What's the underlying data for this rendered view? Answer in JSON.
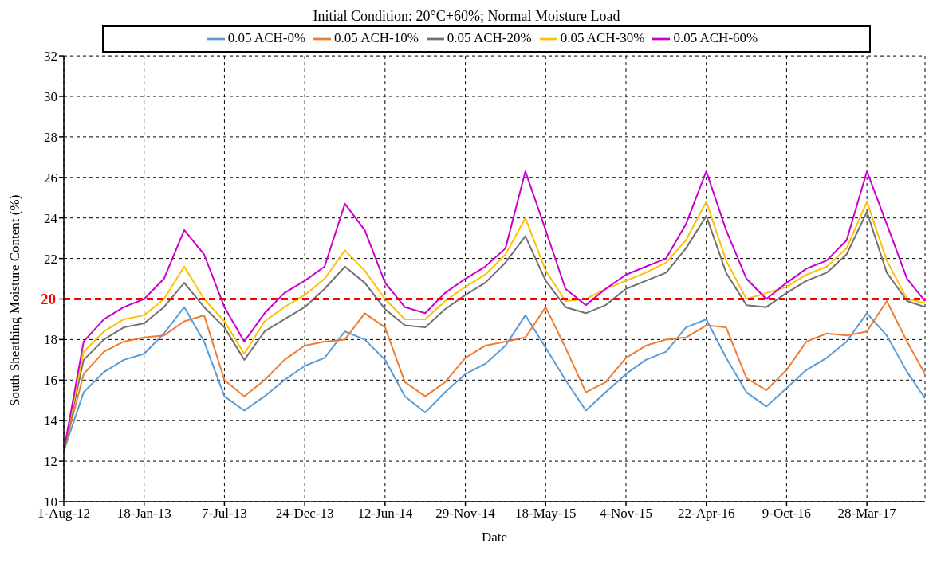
{
  "chart_data": {
    "type": "line",
    "title": "Initial Condition: 20°C+60%; Normal Moisture Load",
    "xlabel": "Date",
    "ylabel": "South Sheathing Moisture Content (%)",
    "x": [
      "2012-08-01",
      "2012-09-12",
      "2012-10-25",
      "2012-12-06",
      "2013-01-18",
      "2013-03-01",
      "2013-04-13",
      "2013-05-25",
      "2013-07-07",
      "2013-08-18",
      "2013-09-30",
      "2013-11-11",
      "2013-12-24",
      "2014-02-04",
      "2014-03-19",
      "2014-04-30",
      "2014-06-12",
      "2014-07-24",
      "2014-09-05",
      "2014-10-17",
      "2014-11-29",
      "2015-01-10",
      "2015-02-22",
      "2015-04-05",
      "2015-05-18",
      "2015-06-29",
      "2015-08-11",
      "2015-09-22",
      "2015-11-04",
      "2015-12-16",
      "2016-01-28",
      "2016-03-10",
      "2016-04-22",
      "2016-06-03",
      "2016-07-16",
      "2016-08-27",
      "2016-10-09",
      "2016-11-20",
      "2017-01-02",
      "2017-02-13",
      "2017-03-28",
      "2017-05-09",
      "2017-06-21",
      "2017-07-29"
    ],
    "series": [
      {
        "name": "0.05 ACH-0%",
        "color": "#5b9bd5",
        "values": [
          12.5,
          15.4,
          16.4,
          17.0,
          17.3,
          18.3,
          19.6,
          17.9,
          15.2,
          14.5,
          15.2,
          16.0,
          16.7,
          17.1,
          18.4,
          18.0,
          17.0,
          15.2,
          14.4,
          15.4,
          16.3,
          16.8,
          17.7,
          19.2,
          17.6,
          16.0,
          14.5,
          15.4,
          16.3,
          17.0,
          17.4,
          18.6,
          19.0,
          17.1,
          15.4,
          14.7,
          15.6,
          16.5,
          17.1,
          17.9,
          19.3,
          18.2,
          16.4,
          15.1
        ]
      },
      {
        "name": "0.05 ACH-10%",
        "color": "#ed7d31",
        "values": [
          12.5,
          16.3,
          17.4,
          17.9,
          18.1,
          18.2,
          18.9,
          19.2,
          16.0,
          15.2,
          16.0,
          17.0,
          17.7,
          17.9,
          18.0,
          19.3,
          18.6,
          15.9,
          15.2,
          15.9,
          17.1,
          17.7,
          17.9,
          18.1,
          19.6,
          17.6,
          15.4,
          15.9,
          17.1,
          17.7,
          18.0,
          18.1,
          18.7,
          18.6,
          16.1,
          15.5,
          16.5,
          17.9,
          18.3,
          18.2,
          18.4,
          19.9,
          17.9,
          16.3
        ]
      },
      {
        "name": "0.05 ACH-20%",
        "color": "#707070",
        "values": [
          12.5,
          17.0,
          18.0,
          18.6,
          18.8,
          19.6,
          20.8,
          19.6,
          18.6,
          17.0,
          18.4,
          19.0,
          19.6,
          20.5,
          21.6,
          20.8,
          19.5,
          18.7,
          18.6,
          19.5,
          20.2,
          20.8,
          21.8,
          23.1,
          20.9,
          19.6,
          19.3,
          19.7,
          20.5,
          20.9,
          21.3,
          22.5,
          24.1,
          21.3,
          19.7,
          19.6,
          20.3,
          20.9,
          21.3,
          22.2,
          24.3,
          21.3,
          19.9,
          19.6
        ]
      },
      {
        "name": "0.05 ACH-30%",
        "color": "#ffc000",
        "values": [
          12.5,
          17.4,
          18.4,
          19.0,
          19.2,
          20.0,
          21.6,
          20.0,
          18.9,
          17.3,
          18.9,
          19.6,
          20.2,
          21.0,
          22.4,
          21.4,
          20.0,
          19.0,
          19.0,
          19.9,
          20.6,
          21.2,
          22.2,
          24.0,
          21.4,
          19.9,
          20.0,
          20.5,
          20.9,
          21.3,
          21.8,
          22.9,
          24.8,
          21.9,
          20.0,
          20.3,
          20.6,
          21.2,
          21.6,
          22.5,
          24.8,
          21.9,
          20.0,
          19.8
        ]
      },
      {
        "name": "0.05 ACH-60%",
        "color": "#cc00cc",
        "values": [
          12.5,
          17.9,
          19.0,
          19.6,
          20.0,
          21.0,
          23.4,
          22.2,
          19.6,
          17.9,
          19.3,
          20.3,
          20.9,
          21.6,
          24.7,
          23.4,
          20.8,
          19.6,
          19.3,
          20.3,
          21.0,
          21.6,
          22.5,
          26.3,
          23.4,
          20.5,
          19.7,
          20.5,
          21.2,
          21.6,
          22.0,
          23.7,
          26.3,
          23.4,
          21.0,
          20.0,
          20.8,
          21.5,
          21.9,
          22.9,
          26.3,
          23.7,
          21.0,
          19.9
        ]
      }
    ],
    "xlim": [
      "2012-08-01",
      "2017-07-29"
    ],
    "xticks": [
      {
        "value": "2012-08-01",
        "label": "1-Aug-12"
      },
      {
        "value": "2013-01-18",
        "label": "18-Jan-13"
      },
      {
        "value": "2013-07-07",
        "label": "7-Jul-13"
      },
      {
        "value": "2013-12-24",
        "label": "24-Dec-13"
      },
      {
        "value": "2014-06-12",
        "label": "12-Jun-14"
      },
      {
        "value": "2014-11-29",
        "label": "29-Nov-14"
      },
      {
        "value": "2015-05-18",
        "label": "18-May-15"
      },
      {
        "value": "2015-11-04",
        "label": "4-Nov-15"
      },
      {
        "value": "2016-04-22",
        "label": "22-Apr-16"
      },
      {
        "value": "2016-10-09",
        "label": "9-Oct-16"
      },
      {
        "value": "2017-03-28",
        "label": "28-Mar-17"
      }
    ],
    "ylim": [
      10,
      32
    ],
    "yticks": [
      10,
      12,
      14,
      16,
      18,
      {
        "value": 20,
        "label": null
      },
      22,
      24,
      26,
      28,
      30,
      32
    ],
    "ref_lines": [
      {
        "axis": "y",
        "value": 20,
        "label": "20",
        "color": "#ff0000",
        "line_style": "dashed"
      }
    ],
    "grid": true,
    "legend": "top",
    "marker": "none",
    "line_style": "solid"
  }
}
